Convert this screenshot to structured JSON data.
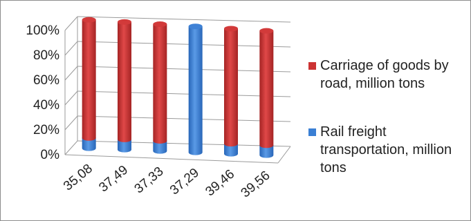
{
  "chart_data": {
    "type": "bar",
    "stacked": "percent",
    "style": "3d-cylinder",
    "categories": [
      "35,08",
      "37,49",
      "37,33",
      "37,29",
      "39,46",
      "39,56"
    ],
    "series": [
      {
        "name": "Rail freight transportation, million tons",
        "color": "#3a7fd4",
        "values": [
          8,
          8,
          8,
          100,
          8,
          8
        ]
      },
      {
        "name": "Carriage of goods by road, million tons",
        "color": "#cc3333",
        "values": [
          92,
          92,
          92,
          0,
          92,
          92
        ]
      }
    ],
    "y_ticks": [
      "0%",
      "20%",
      "40%",
      "60%",
      "80%",
      "100%"
    ],
    "ylim": [
      0,
      100
    ],
    "grid": true,
    "legend_position": "right"
  },
  "legend": {
    "items": [
      {
        "label": "Carriage of goods by road, million tons",
        "color": "#cc3333"
      },
      {
        "label": "Rail freight transportation, million tons",
        "color": "#3a7fd4"
      }
    ]
  }
}
